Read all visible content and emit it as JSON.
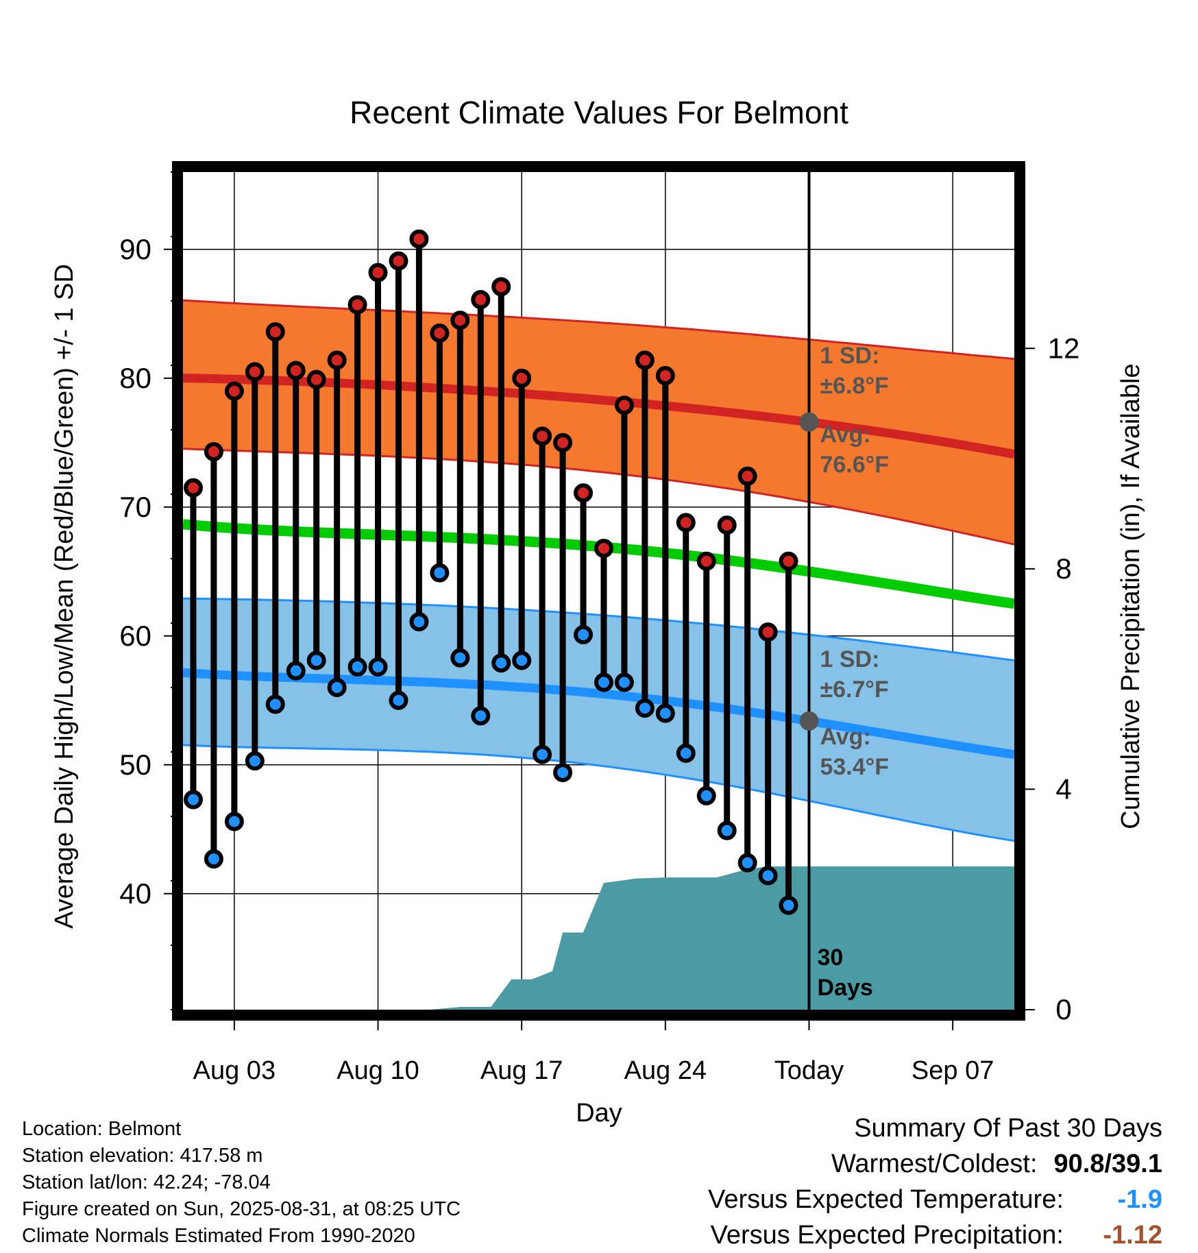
{
  "chart_data": {
    "type": "line",
    "title": "Recent Climate Values For Belmont",
    "xlabel": "Day",
    "ylabel": "Average Daily High/Low/Mean (Red/Blue/Green) +/- 1 SD",
    "y2label": "Cumulative Precipitation (in), If Available",
    "x_range_days": [
      -30.5,
      10
    ],
    "ylim": [
      31,
      96
    ],
    "y_ticks": [
      40,
      50,
      60,
      70,
      80,
      90
    ],
    "y2lim": [
      0,
      15.2
    ],
    "y2_ticks": [
      0,
      4,
      8,
      12
    ],
    "x_ticks": [
      {
        "day": -28,
        "label": "Aug 03"
      },
      {
        "day": -21,
        "label": "Aug 10"
      },
      {
        "day": -14,
        "label": "Aug 17"
      },
      {
        "day": -7,
        "label": "Aug 24"
      },
      {
        "day": 0,
        "label": "Today"
      },
      {
        "day": 7,
        "label": "Sep 07"
      }
    ],
    "grid": true,
    "daily_high": [
      71.5,
      74.3,
      79.0,
      80.5,
      83.6,
      80.6,
      79.9,
      81.4,
      85.7,
      88.2,
      89.1,
      90.8,
      83.5,
      84.5,
      86.1,
      87.1,
      80.0,
      75.5,
      75.0,
      71.1,
      66.8,
      77.9,
      81.4,
      80.2,
      68.8,
      65.8,
      68.6,
      72.4,
      60.3,
      65.8
    ],
    "daily_low": [
      47.3,
      42.7,
      45.6,
      50.3,
      54.7,
      57.3,
      58.1,
      56.0,
      57.6,
      57.6,
      55.0,
      61.1,
      64.9,
      58.3,
      53.8,
      57.9,
      58.1,
      50.8,
      49.4,
      60.1,
      56.4,
      56.4,
      54.4,
      54.0,
      50.9,
      47.6,
      44.9,
      42.4,
      41.4,
      39.1
    ],
    "normal_high": {
      "days": [
        -30,
        -20,
        -10,
        0,
        10
      ],
      "mean": [
        80.0,
        79.4,
        78.3,
        76.6,
        74.1
      ],
      "upper": [
        86.0,
        85.2,
        84.3,
        83.0,
        81.5
      ],
      "lower": [
        74.5,
        73.9,
        72.7,
        70.4,
        67.1
      ]
    },
    "normal_low": {
      "days": [
        -30,
        -20,
        -10,
        0,
        10
      ],
      "mean": [
        57.1,
        56.5,
        55.5,
        53.4,
        50.8
      ],
      "upper": [
        62.9,
        62.5,
        61.6,
        60.1,
        58.1
      ],
      "lower": [
        51.5,
        51.1,
        49.9,
        47.2,
        44.1
      ]
    },
    "normal_mean": {
      "days": [
        -30,
        -20,
        -10,
        0,
        10
      ],
      "values": [
        68.6,
        67.8,
        66.9,
        65.0,
        62.5
      ]
    },
    "precipitation": {
      "days": [
        -30,
        -18.5,
        -17,
        -15.5,
        -14.5,
        -13.5,
        -12.5,
        -12,
        -11,
        -10,
        -9,
        -8.5,
        -7,
        -4.5,
        -3,
        -2,
        10
      ],
      "values": [
        0,
        0,
        0.05,
        0.05,
        0.55,
        0.55,
        0.7,
        1.4,
        1.4,
        2.3,
        2.35,
        2.38,
        2.4,
        2.4,
        2.55,
        2.6,
        2.6
      ]
    },
    "annotations": {
      "high_sd_label": "1 SD:",
      "high_sd_value": "±6.8°F",
      "high_avg_label": "Avg:",
      "high_avg_value": "76.6°F",
      "low_sd_label": "1 SD:",
      "low_sd_value": "±6.7°F",
      "low_avg_label": "Avg:",
      "low_avg_value": "53.4°F",
      "days_label_1": "30",
      "days_label_2": "Days"
    },
    "colors": {
      "high_band": "#f4792f",
      "high_line": "#d22323",
      "low_band": "#86c2e7",
      "low_line": "#1e90ff",
      "mean_line": "#00cc00",
      "precip_fill": "#4a9ba4",
      "high_marker": "#d22323",
      "low_marker": "#1e90ff",
      "annotation_text": "#555555"
    }
  },
  "meta": {
    "location": "Location: Belmont",
    "elevation": "Station elevation: 417.58 m",
    "latlon": "Station lat/lon: 42.24; -78.04",
    "created": "Figure created on Sun, 2025-08-31, at 08:25 UTC",
    "normals": "Climate Normals Estimated From 1990-2020"
  },
  "summary": {
    "title": "Summary Of Past 30 Days",
    "warm_cold_label": "Warmest/Coldest:",
    "warm_cold_value": "90.8/39.1",
    "temp_label": "Versus Expected Temperature:",
    "temp_value": "-1.9",
    "temp_color": "#1e90ff",
    "precip_label": "Versus Expected Precipitation:",
    "precip_value": "-1.12",
    "precip_color": "#a0522d"
  }
}
